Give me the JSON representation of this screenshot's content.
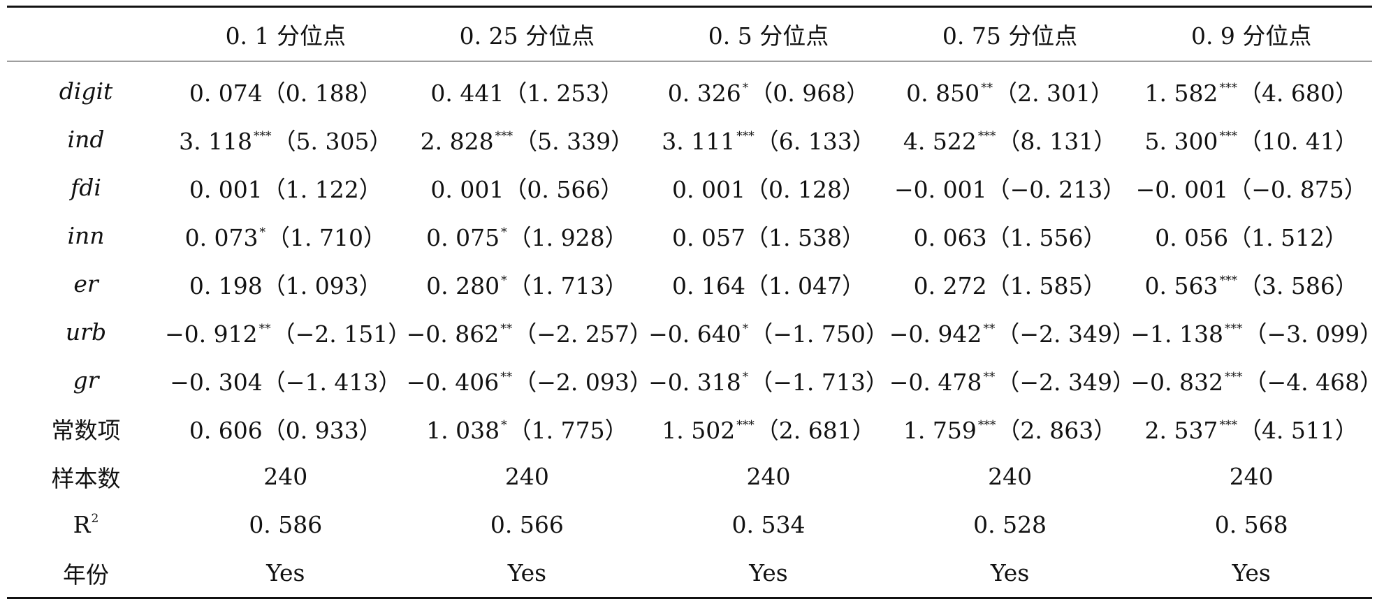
{
  "table": {
    "columns": [
      "",
      "0. 1 分位点",
      "0. 25 分位点",
      "0. 5 分位点",
      "0. 75 分位点",
      "0. 9 分位点"
    ],
    "rows": [
      {
        "label": "digit",
        "italic": true,
        "cells": [
          {
            "coef": "0. 074",
            "stars": "",
            "t": "（0. 188）"
          },
          {
            "coef": "0. 441",
            "stars": "",
            "t": "（1. 253）"
          },
          {
            "coef": "0. 326",
            "stars": "*",
            "t": "（0. 968）"
          },
          {
            "coef": "0. 850",
            "stars": "**",
            "t": "（2. 301）"
          },
          {
            "coef": "1. 582",
            "stars": "***",
            "t": "（4. 680）"
          }
        ]
      },
      {
        "label": "ind",
        "italic": true,
        "cells": [
          {
            "coef": "3. 118",
            "stars": "***",
            "t": "（5. 305）"
          },
          {
            "coef": "2. 828",
            "stars": "***",
            "t": "（5. 339）"
          },
          {
            "coef": "3. 111",
            "stars": "***",
            "t": "（6. 133）"
          },
          {
            "coef": "4. 522",
            "stars": "***",
            "t": "（8. 131）"
          },
          {
            "coef": "5. 300",
            "stars": "***",
            "t": "（10. 41）"
          }
        ]
      },
      {
        "label": "fdi",
        "italic": true,
        "cells": [
          {
            "coef": "0. 001",
            "stars": "",
            "t": "（1. 122）"
          },
          {
            "coef": "0. 001",
            "stars": "",
            "t": "（0. 566）"
          },
          {
            "coef": "0. 001",
            "stars": "",
            "t": "（0. 128）"
          },
          {
            "coef": "−0. 001",
            "stars": "",
            "t": "（−0. 213）"
          },
          {
            "coef": "−0. 001",
            "stars": "",
            "t": "（−0. 875）"
          }
        ]
      },
      {
        "label": "inn",
        "italic": true,
        "cells": [
          {
            "coef": "0. 073",
            "stars": "*",
            "t": "（1. 710）"
          },
          {
            "coef": "0. 075",
            "stars": "*",
            "t": "（1. 928）"
          },
          {
            "coef": "0. 057",
            "stars": "",
            "t": "（1. 538）"
          },
          {
            "coef": "0. 063",
            "stars": "",
            "t": "（1. 556）"
          },
          {
            "coef": "0. 056",
            "stars": "",
            "t": "（1. 512）"
          }
        ]
      },
      {
        "label": "er",
        "italic": true,
        "cells": [
          {
            "coef": "0. 198",
            "stars": "",
            "t": "（1. 093）"
          },
          {
            "coef": "0. 280",
            "stars": "*",
            "t": "（1. 713）"
          },
          {
            "coef": "0. 164",
            "stars": "",
            "t": "（1. 047）"
          },
          {
            "coef": "0. 272",
            "stars": "",
            "t": "（1. 585）"
          },
          {
            "coef": "0. 563",
            "stars": "***",
            "t": "（3. 586）"
          }
        ]
      },
      {
        "label": "urb",
        "italic": true,
        "cells": [
          {
            "coef": "−0. 912",
            "stars": "**",
            "t": "（−2. 151）"
          },
          {
            "coef": "−0. 862",
            "stars": "**",
            "t": "（−2. 257）"
          },
          {
            "coef": "−0. 640",
            "stars": "*",
            "t": "（−1. 750）"
          },
          {
            "coef": "−0. 942",
            "stars": "**",
            "t": "（−2. 349）"
          },
          {
            "coef": "−1. 138",
            "stars": "***",
            "t": "（−3. 099）"
          }
        ]
      },
      {
        "label": "gr",
        "italic": true,
        "cells": [
          {
            "coef": "−0. 304",
            "stars": "",
            "t": "（−1. 413）"
          },
          {
            "coef": "−0. 406",
            "stars": "**",
            "t": "（−2. 093）"
          },
          {
            "coef": "−0. 318",
            "stars": "*",
            "t": "（−1. 713）"
          },
          {
            "coef": "−0. 478",
            "stars": "**",
            "t": "（−2. 349）"
          },
          {
            "coef": "−0. 832",
            "stars": "***",
            "t": "（−4. 468）"
          }
        ]
      },
      {
        "label": "常数项",
        "italic": false,
        "cells": [
          {
            "coef": "0. 606",
            "stars": "",
            "t": "（0. 933）"
          },
          {
            "coef": "1. 038",
            "stars": "*",
            "t": "（1. 775）"
          },
          {
            "coef": "1. 502",
            "stars": "***",
            "t": "（2. 681）"
          },
          {
            "coef": "1. 759",
            "stars": "***",
            "t": "（2. 863）"
          },
          {
            "coef": "2. 537",
            "stars": "***",
            "t": "（4. 511）"
          }
        ]
      },
      {
        "label": "样本数",
        "italic": false,
        "cells": [
          {
            "coef": "240",
            "stars": "",
            "t": ""
          },
          {
            "coef": "240",
            "stars": "",
            "t": ""
          },
          {
            "coef": "240",
            "stars": "",
            "t": ""
          },
          {
            "coef": "240",
            "stars": "",
            "t": ""
          },
          {
            "coef": "240",
            "stars": "",
            "t": ""
          }
        ]
      },
      {
        "label": "R",
        "label_sup": "2",
        "italic": false,
        "cells": [
          {
            "coef": "0. 586",
            "stars": "",
            "t": ""
          },
          {
            "coef": "0. 566",
            "stars": "",
            "t": ""
          },
          {
            "coef": "0. 534",
            "stars": "",
            "t": ""
          },
          {
            "coef": "0. 528",
            "stars": "",
            "t": ""
          },
          {
            "coef": "0. 568",
            "stars": "",
            "t": ""
          }
        ]
      },
      {
        "label": "年份",
        "italic": false,
        "cells": [
          {
            "coef": "Yes",
            "stars": "",
            "t": ""
          },
          {
            "coef": "Yes",
            "stars": "",
            "t": ""
          },
          {
            "coef": "Yes",
            "stars": "",
            "t": ""
          },
          {
            "coef": "Yes",
            "stars": "",
            "t": ""
          },
          {
            "coef": "Yes",
            "stars": "",
            "t": ""
          }
        ]
      }
    ]
  }
}
